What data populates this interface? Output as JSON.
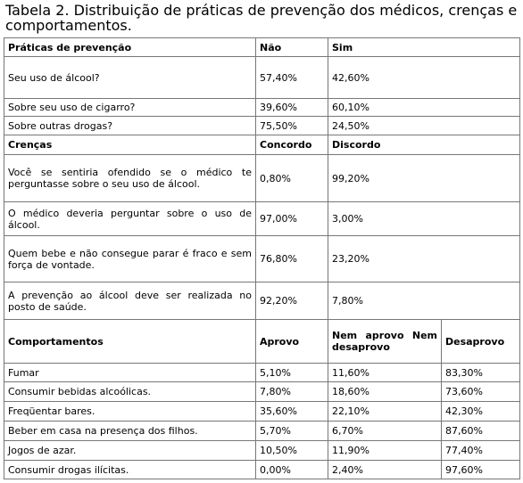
{
  "title": "Tabela 2. Distribuição de práticas de prevenção dos médicos, crenças e comportamentos.",
  "table": {
    "sections": [
      {
        "header": [
          "Práticas de prevenção",
          "Não",
          "Sim"
        ],
        "rows": [
          [
            "Seu uso de álcool?",
            "57,40%",
            "42,60%"
          ],
          [
            "Sobre seu uso de cigarro?",
            "39,60%",
            "60,10%"
          ],
          [
            "Sobre outras drogas?",
            "75,50%",
            "24,50%"
          ]
        ]
      },
      {
        "header": [
          "Crenças",
          "Concordo",
          "Discordo"
        ],
        "rows": [
          [
            "Você se sentiria ofendido se o médico te perguntasse sobre o seu uso de álcool.",
            "0,80%",
            "99,20%"
          ],
          [
            "O médico deveria perguntar sobre o uso de álcool.",
            "97,00%",
            "3,00%"
          ],
          [
            "Quem bebe e não consegue parar é fraco e sem força de vontade.",
            "76,80%",
            "23,20%"
          ],
          [
            "A prevenção ao álcool deve ser realizada no posto de saúde.",
            "92,20%",
            "7,80%"
          ]
        ]
      },
      {
        "header": [
          "Comportamentos",
          "Aprovo",
          "Nem aprovo Nem desaprovo",
          "Desaprovo"
        ],
        "rows": [
          [
            "Fumar",
            "5,10%",
            "11,60%",
            "83,30%"
          ],
          [
            "Consumir bebidas alcoólicas.",
            "7,80%",
            "18,60%",
            "73,60%"
          ],
          [
            "Freqüentar bares.",
            "35,60%",
            "22,10%",
            "42,30%"
          ],
          [
            "Beber em casa na presença dos filhos.",
            "5,70%",
            "6,70%",
            "87,60%"
          ],
          [
            "Jogos de azar.",
            "10,50%",
            "11,90%",
            "77,40%"
          ],
          [
            "Consumir drogas ilícitas.",
            "0,00%",
            "2,40%",
            "97,60%"
          ]
        ]
      }
    ]
  }
}
